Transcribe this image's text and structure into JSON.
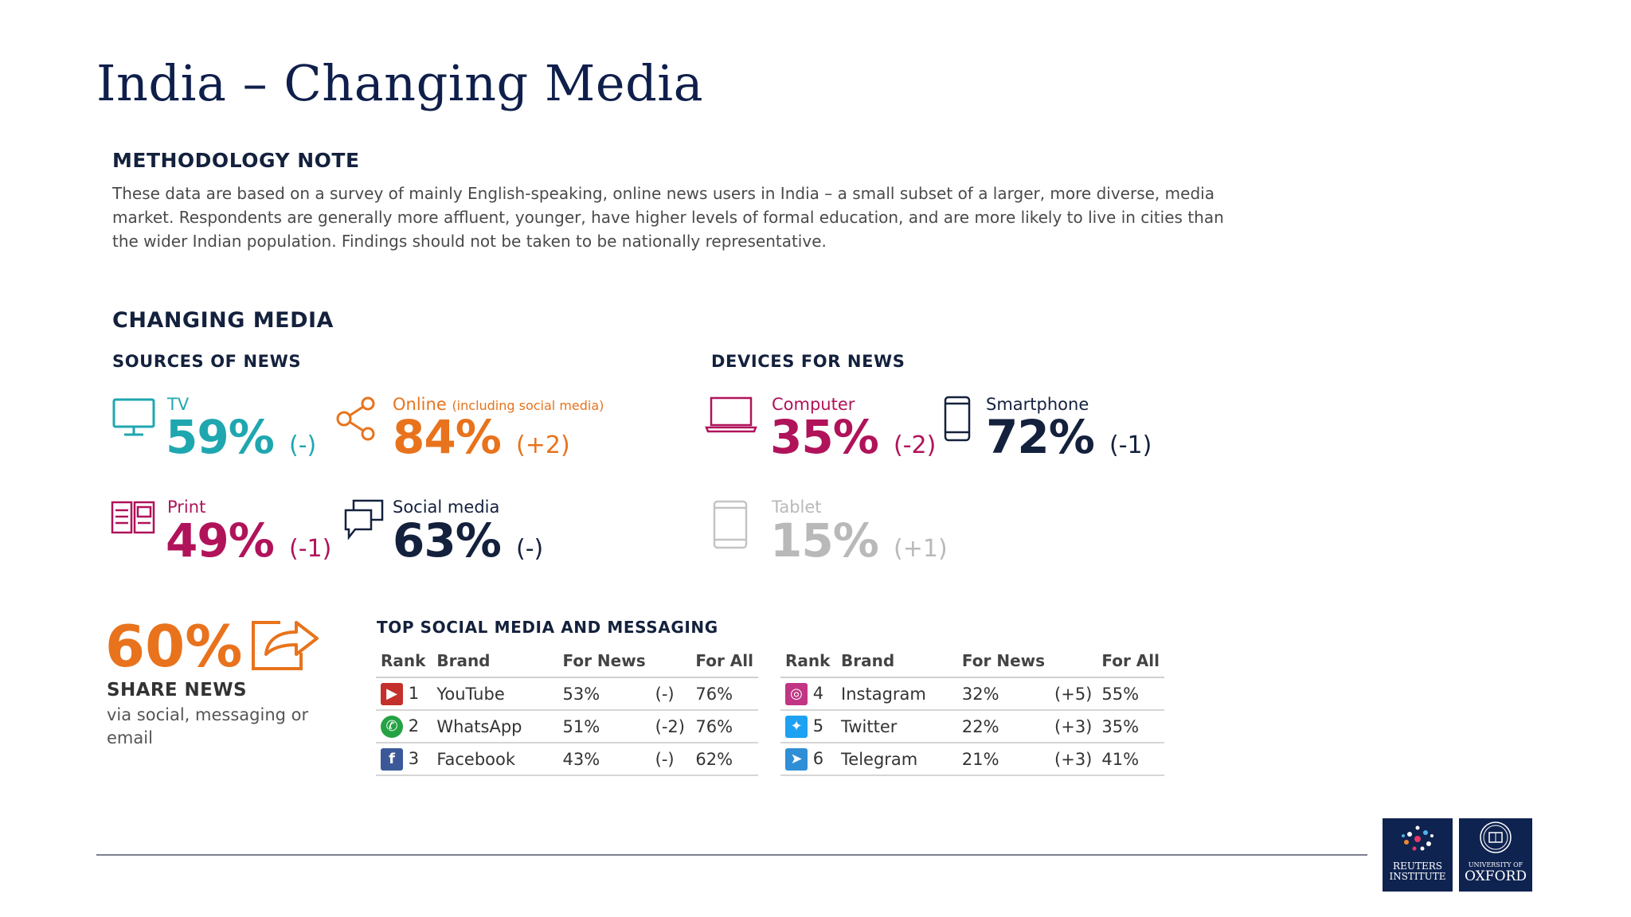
{
  "title": "India – Changing Media",
  "methodology": {
    "heading": "METHODOLOGY NOTE",
    "text": "These data are based on a survey of mainly English-speaking, online news users in India – a small subset of a larger, more diverse, media market. Respondents are generally more affluent, younger, have higher levels of formal education, and are more likely to live in cities than the wider Indian population. Findings should not be taken to be nationally representative."
  },
  "changing_media": {
    "heading": "CHANGING MEDIA",
    "sources_heading": "SOURCES OF NEWS",
    "devices_heading": "DEVICES FOR NEWS",
    "sources": [
      {
        "label": "TV",
        "value": "59%",
        "change": "(-)",
        "color": "#1fa7b0",
        "icon": "tv-icon"
      },
      {
        "label": "Online",
        "label_note": "(including social media)",
        "value": "84%",
        "change": "(+2)",
        "color": "#e8731c",
        "icon": "share-network-icon"
      },
      {
        "label": "Print",
        "value": "49%",
        "change": "(-1)",
        "color": "#b0135a",
        "icon": "newspaper-icon"
      },
      {
        "label": "Social media",
        "value": "63%",
        "change": "(-)",
        "color": "#14213d",
        "icon": "chat-bubbles-icon"
      }
    ],
    "devices": [
      {
        "label": "Computer",
        "value": "35%",
        "change": "(-2)",
        "color": "#b0135a",
        "icon": "laptop-icon"
      },
      {
        "label": "Smartphone",
        "value": "72%",
        "change": "(-1)",
        "color": "#14213d",
        "icon": "smartphone-icon"
      },
      {
        "label": "Tablet",
        "value": "15%",
        "change": "(+1)",
        "color": "#b9b9b9",
        "icon": "tablet-icon"
      }
    ]
  },
  "share": {
    "value": "60%",
    "title": "SHARE NEWS",
    "subtitle": "via social, messaging or email"
  },
  "top_social": {
    "heading": "TOP SOCIAL MEDIA AND MESSAGING",
    "columns": [
      "Rank",
      "Brand",
      "For News",
      "For All"
    ],
    "left": [
      {
        "rank": "1",
        "brand": "YouTube",
        "for_news": "53%",
        "change": "(-)",
        "for_all": "76%",
        "icon": "youtube-icon",
        "icon_color": "#c4302b"
      },
      {
        "rank": "2",
        "brand": "WhatsApp",
        "for_news": "51%",
        "change": "(-2)",
        "for_all": "76%",
        "icon": "whatsapp-icon",
        "icon_color": "#25a244"
      },
      {
        "rank": "3",
        "brand": "Facebook",
        "for_news": "43%",
        "change": "(-)",
        "for_all": "62%",
        "icon": "facebook-icon",
        "icon_color": "#3b5998"
      }
    ],
    "right": [
      {
        "rank": "4",
        "brand": "Instagram",
        "for_news": "32%",
        "change": "(+5)",
        "for_all": "55%",
        "icon": "instagram-icon",
        "icon_color": "#c13584"
      },
      {
        "rank": "5",
        "brand": "Twitter",
        "for_news": "22%",
        "change": "(+3)",
        "for_all": "35%",
        "icon": "twitter-icon",
        "icon_color": "#1da1f2"
      },
      {
        "rank": "6",
        "brand": "Telegram",
        "for_news": "21%",
        "change": "(+3)",
        "for_all": "41%",
        "icon": "telegram-icon",
        "icon_color": "#2f8fd6"
      }
    ]
  },
  "logos": {
    "reuters": [
      "REUTERS",
      "INSTITUTE"
    ],
    "oxford": [
      "UNIVERSITY OF",
      "OXFORD"
    ]
  }
}
